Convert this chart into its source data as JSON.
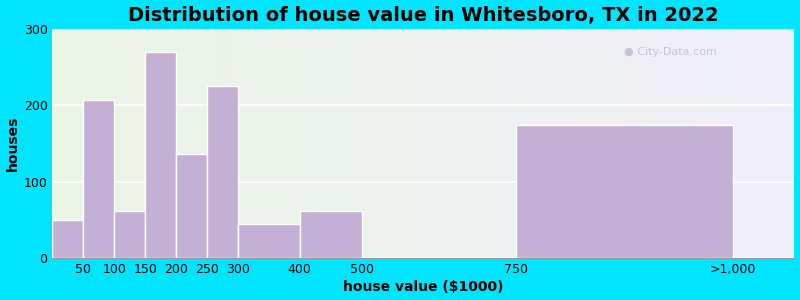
{
  "title": "Distribution of house value in Whitesboro, TX in 2022",
  "xlabel": "house value ($1000)",
  "ylabel": "houses",
  "bin_edges": [
    0,
    50,
    100,
    150,
    200,
    250,
    300,
    400,
    500,
    750,
    1100
  ],
  "bin_values": [
    50,
    207,
    62,
    270,
    137,
    225,
    45,
    62,
    0,
    175
  ],
  "xtick_positions": [
    50,
    100,
    150,
    200,
    250,
    300,
    400,
    500,
    750,
    1100
  ],
  "xtick_labels": [
    "50",
    "100",
    "150",
    "200",
    "250",
    "300",
    "400",
    "500",
    "750",
    ">1,000"
  ],
  "bar_color": "#c4b0d5",
  "bar_edge_color": "#ffffff",
  "ylim": [
    0,
    300
  ],
  "yticks": [
    0,
    100,
    200,
    300
  ],
  "background_outer": "#00e5ff",
  "grid_color": "#ffffff",
  "title_fontsize": 14,
  "axis_label_fontsize": 10,
  "tick_fontsize": 9,
  "watermark": "City-Data.com",
  "xlim_left": 0,
  "xlim_right": 1200
}
